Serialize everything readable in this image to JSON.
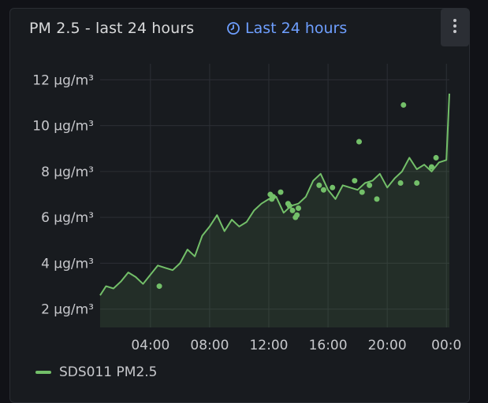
{
  "panel": {
    "title": "PM 2.5 - last 24 hours",
    "time_range": "Last 24 hours",
    "menu_icon": "vertical-ellipsis-icon",
    "clock_icon": "clock-icon"
  },
  "legend": {
    "items": [
      {
        "label": "SDS011 PM2.5",
        "color": "#73bf69"
      }
    ]
  },
  "colors": {
    "series": "#73bf69",
    "title": "#d8d9da",
    "link": "#6e9fff",
    "background": "#181b1f"
  },
  "chart_data": {
    "type": "line",
    "x_unit": "hours",
    "x_range": [
      0.6,
      24.2
    ],
    "y_range": [
      1.2,
      12.7
    ],
    "y_ticks": [
      2,
      4,
      6,
      8,
      10,
      12
    ],
    "y_tick_labels": [
      "2 µg/m³",
      "4 µg/m³",
      "6 µg/m³",
      "8 µg/m³",
      "10 µg/m³",
      "12 µg/m³"
    ],
    "x_ticks": [
      4,
      8,
      12,
      16,
      20,
      24
    ],
    "x_tick_labels": [
      "04:00",
      "08:00",
      "12:00",
      "16:00",
      "20:00",
      "00:0"
    ],
    "grid": true,
    "fill": true,
    "series": [
      {
        "name": "SDS011 PM2.5",
        "color": "#73bf69",
        "x": [
          0.6,
          1.0,
          1.5,
          2.0,
          2.5,
          3.0,
          3.5,
          4.0,
          4.5,
          5.0,
          5.5,
          6.0,
          6.5,
          7.0,
          7.5,
          8.0,
          8.5,
          9.0,
          9.5,
          10.0,
          10.5,
          11.0,
          11.5,
          12.0,
          12.5,
          13.0,
          13.5,
          14.0,
          14.5,
          15.0,
          15.5,
          16.0,
          16.5,
          17.0,
          17.5,
          18.0,
          18.5,
          19.0,
          19.5,
          20.0,
          20.5,
          21.0,
          21.5,
          22.0,
          22.5,
          23.0,
          23.5,
          24.0,
          24.2
        ],
        "y": [
          2.6,
          3.0,
          2.9,
          3.2,
          3.6,
          3.4,
          3.1,
          3.5,
          3.9,
          3.8,
          3.7,
          4.0,
          4.6,
          4.3,
          5.2,
          5.6,
          6.1,
          5.4,
          5.9,
          5.6,
          5.8,
          6.3,
          6.6,
          6.8,
          6.9,
          6.2,
          6.5,
          6.6,
          6.9,
          7.6,
          7.9,
          7.2,
          6.8,
          7.4,
          7.3,
          7.2,
          7.5,
          7.6,
          7.9,
          7.3,
          7.7,
          8.0,
          8.6,
          8.1,
          8.3,
          8.0,
          8.4,
          8.5,
          11.4
        ]
      }
    ],
    "points": {
      "x": [
        4.6,
        12.1,
        12.2,
        12.3,
        12.8,
        13.3,
        13.4,
        13.6,
        13.8,
        13.9,
        14.0,
        15.4,
        15.7,
        16.3,
        17.8,
        18.1,
        18.3,
        18.8,
        19.3,
        20.9,
        21.1,
        22.0,
        23.0,
        23.3
      ],
      "y": [
        3.0,
        7.0,
        6.8,
        6.9,
        7.1,
        6.6,
        6.5,
        6.3,
        6.0,
        6.1,
        6.4,
        7.4,
        7.2,
        7.3,
        7.6,
        9.3,
        7.1,
        7.4,
        6.8,
        7.5,
        10.9,
        7.5,
        8.2,
        8.6
      ]
    }
  }
}
